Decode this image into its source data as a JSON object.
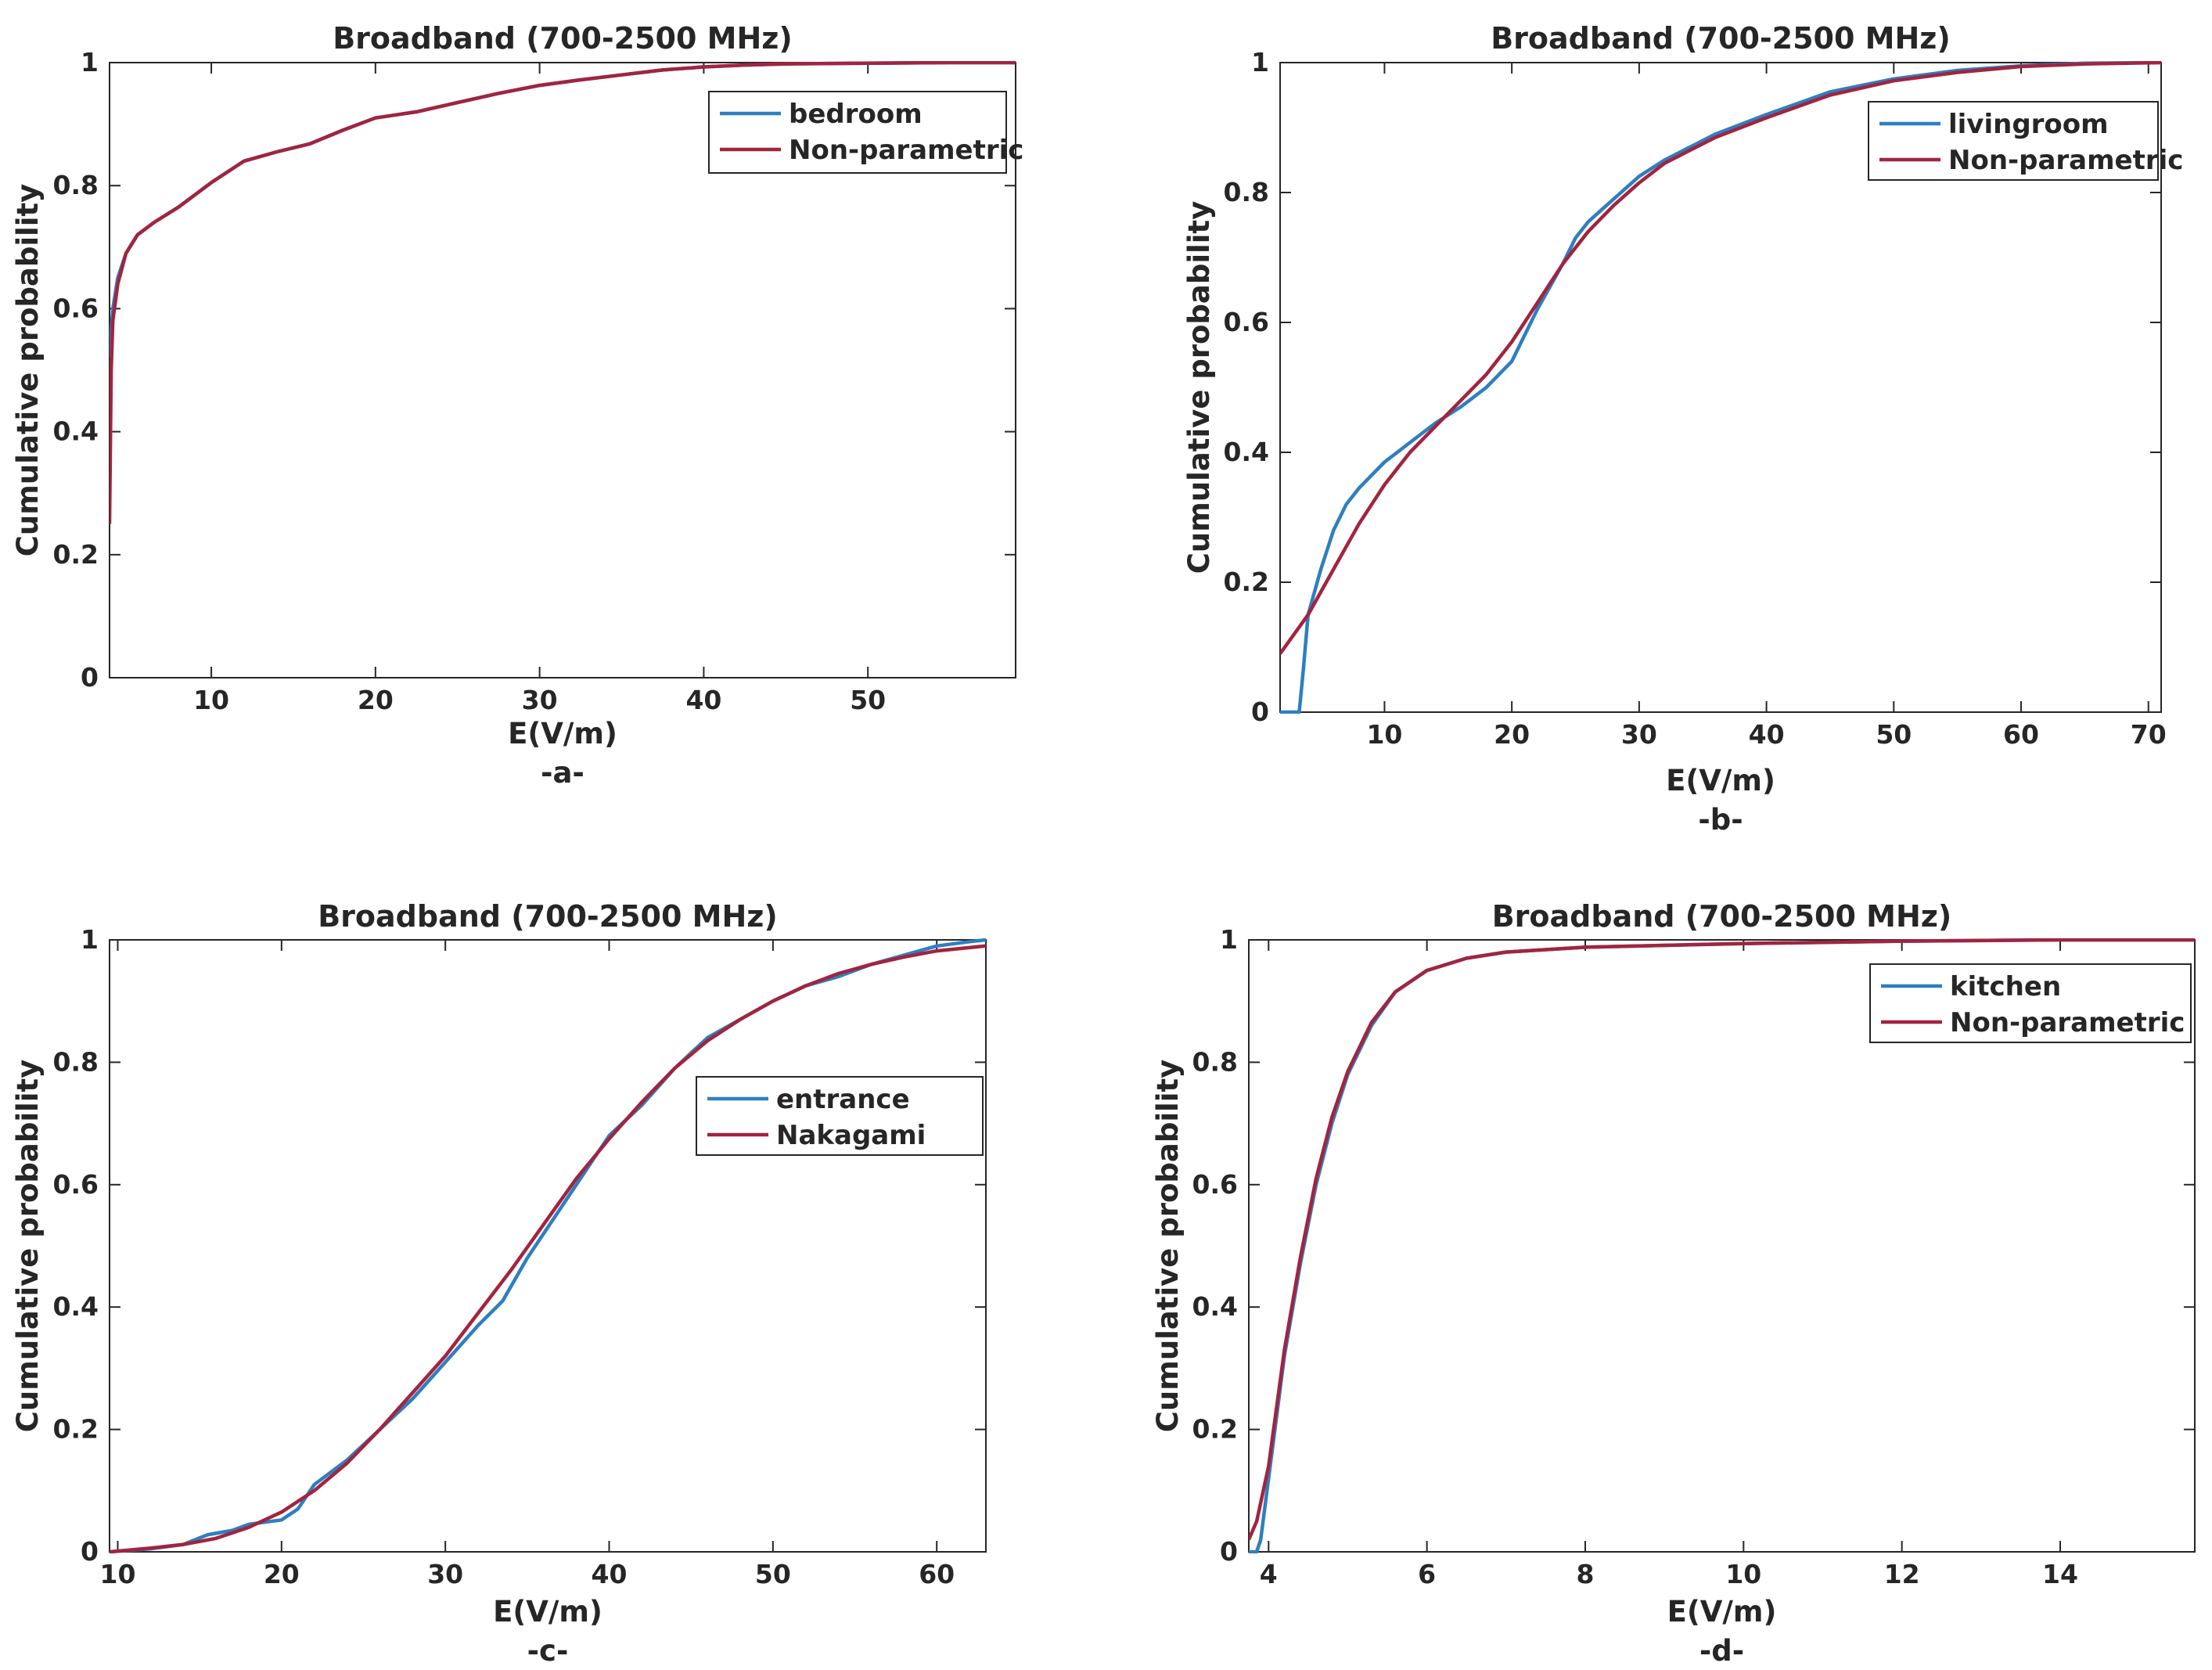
{
  "chart_data": [
    {
      "id": "a",
      "type": "line",
      "title": "Broadband (700-2500 MHz)",
      "xlabel": "E(V/m)",
      "ylabel": "Cumulative probability",
      "caption": "-a-",
      "xlim": [
        3.8,
        59
      ],
      "ylim": [
        0,
        1
      ],
      "xticks": [
        10,
        20,
        30,
        40,
        50
      ],
      "yticks": [
        0,
        0.2,
        0.4,
        0.6,
        0.8,
        1
      ],
      "ytick_labels": [
        "0",
        "0.2",
        "0.4",
        "0.6",
        "0.8",
        "1"
      ],
      "legend_position": "top-right",
      "series": [
        {
          "name": "bedroom",
          "color": "#2e7fc0",
          "x": [
            3.8,
            4.0,
            4.3,
            4.8,
            5.5,
            6.5,
            8,
            10,
            12,
            14,
            16,
            18,
            20,
            22.5,
            25,
            27.5,
            30,
            32.5,
            35,
            37.5,
            40,
            42.5,
            45,
            50,
            55,
            59
          ],
          "y": [
            0.52,
            0.6,
            0.65,
            0.69,
            0.72,
            0.74,
            0.765,
            0.805,
            0.84,
            0.855,
            0.868,
            0.89,
            0.91,
            0.92,
            0.935,
            0.95,
            0.963,
            0.972,
            0.98,
            0.988,
            0.993,
            0.996,
            0.998,
            0.999,
            1.0,
            1.0
          ]
        },
        {
          "name": "Non-parametric",
          "color": "#a2243f",
          "x": [
            3.8,
            3.9,
            4.0,
            4.3,
            4.8,
            5.5,
            6.5,
            8,
            10,
            12,
            14,
            16,
            18,
            20,
            22.5,
            25,
            27.5,
            30,
            32.5,
            35,
            37.5,
            40,
            42.5,
            45,
            50,
            55,
            59
          ],
          "y": [
            0.25,
            0.5,
            0.58,
            0.64,
            0.69,
            0.72,
            0.74,
            0.765,
            0.805,
            0.84,
            0.855,
            0.868,
            0.89,
            0.91,
            0.92,
            0.935,
            0.95,
            0.963,
            0.972,
            0.98,
            0.988,
            0.993,
            0.996,
            0.998,
            0.999,
            1.0,
            1.0
          ]
        }
      ]
    },
    {
      "id": "b",
      "type": "line",
      "title": "Broadband (700-2500 MHz)",
      "xlabel": "E(V/m)",
      "ylabel": "Cumulative probability",
      "caption": "-b-",
      "xlim": [
        1.8,
        71
      ],
      "ylim": [
        0,
        1
      ],
      "xticks": [
        10,
        20,
        30,
        40,
        50,
        60,
        70
      ],
      "yticks": [
        0,
        0.2,
        0.4,
        0.6,
        0.8,
        1
      ],
      "ytick_labels": [
        "0",
        "0.2",
        "0.4",
        "0.6",
        "0.8",
        "1"
      ],
      "legend_position": "top-right",
      "series": [
        {
          "name": "livingroom",
          "color": "#2e7fc0",
          "x": [
            1.8,
            3.3,
            3.6,
            4.0,
            5,
            6,
            7,
            8,
            10,
            12,
            14,
            16,
            18,
            20,
            22,
            24,
            25,
            26,
            28,
            30,
            32,
            34,
            36,
            38,
            40,
            45,
            50,
            55,
            60,
            65,
            71
          ],
          "y": [
            0,
            0,
            0.06,
            0.15,
            0.22,
            0.28,
            0.32,
            0.345,
            0.385,
            0.415,
            0.445,
            0.47,
            0.5,
            0.54,
            0.62,
            0.69,
            0.73,
            0.755,
            0.79,
            0.825,
            0.85,
            0.87,
            0.89,
            0.905,
            0.92,
            0.955,
            0.975,
            0.988,
            0.995,
            0.999,
            1.0
          ]
        },
        {
          "name": "Non-parametric",
          "color": "#a2243f",
          "x": [
            1.8,
            4,
            6,
            8,
            10,
            12,
            14,
            16,
            18,
            20,
            22,
            24,
            26,
            28,
            30,
            32,
            34,
            36,
            38,
            40,
            45,
            50,
            55,
            60,
            65,
            71
          ],
          "y": [
            0.09,
            0.15,
            0.22,
            0.29,
            0.35,
            0.4,
            0.44,
            0.48,
            0.52,
            0.57,
            0.63,
            0.69,
            0.74,
            0.78,
            0.815,
            0.845,
            0.865,
            0.885,
            0.9,
            0.915,
            0.95,
            0.972,
            0.985,
            0.994,
            0.998,
            1.0
          ]
        }
      ]
    },
    {
      "id": "c",
      "type": "line",
      "title": "Broadband (700-2500 MHz)",
      "xlabel": "E(V/m)",
      "ylabel": "Cumulative probability",
      "caption": "-c-",
      "xlim": [
        9.5,
        63
      ],
      "ylim": [
        0,
        1
      ],
      "xticks": [
        10,
        20,
        30,
        40,
        50,
        60
      ],
      "yticks": [
        0,
        0.2,
        0.4,
        0.6,
        0.8,
        1
      ],
      "ytick_labels": [
        "0",
        "0.2",
        "0.4",
        "0.6",
        "0.8",
        "1"
      ],
      "legend_position": "middle-right",
      "series": [
        {
          "name": "entrance",
          "color": "#2e7fc0",
          "x": [
            9.5,
            12,
            14,
            15.5,
            17,
            18,
            20,
            21,
            22,
            24,
            26,
            28,
            30,
            32,
            33.5,
            35,
            37,
            40,
            42,
            44,
            46,
            48,
            50,
            52,
            54,
            56,
            58,
            60,
            62,
            63
          ],
          "y": [
            0,
            0.005,
            0.012,
            0.028,
            0.035,
            0.045,
            0.052,
            0.07,
            0.11,
            0.15,
            0.2,
            0.25,
            0.31,
            0.37,
            0.41,
            0.48,
            0.56,
            0.68,
            0.73,
            0.79,
            0.84,
            0.87,
            0.9,
            0.925,
            0.94,
            0.96,
            0.975,
            0.99,
            0.997,
            1.0
          ]
        },
        {
          "name": "Nakagami",
          "color": "#a2243f",
          "x": [
            9.5,
            12,
            14,
            16,
            18,
            20,
            22,
            24,
            26,
            28,
            30,
            32,
            34,
            36,
            38,
            40,
            42,
            44,
            46,
            48,
            50,
            52,
            54,
            56,
            58,
            60,
            63
          ],
          "y": [
            0,
            0.006,
            0.012,
            0.022,
            0.04,
            0.065,
            0.1,
            0.145,
            0.2,
            0.26,
            0.32,
            0.39,
            0.46,
            0.535,
            0.61,
            0.675,
            0.735,
            0.79,
            0.835,
            0.87,
            0.9,
            0.925,
            0.945,
            0.96,
            0.972,
            0.982,
            0.99
          ]
        }
      ]
    },
    {
      "id": "d",
      "type": "line",
      "title": "Broadband (700-2500 MHz)",
      "xlabel": "E(V/m)",
      "ylabel": "Cumulative probability",
      "caption": "-d-",
      "xlim": [
        3.75,
        15.7
      ],
      "ylim": [
        0,
        1
      ],
      "xticks": [
        4,
        6,
        8,
        10,
        12,
        14
      ],
      "yticks": [
        0,
        0.2,
        0.4,
        0.6,
        0.8,
        1
      ],
      "ytick_labels": [
        "0",
        "0.2",
        "0.4",
        "0.6",
        "0.8",
        "1"
      ],
      "legend_position": "top-right",
      "series": [
        {
          "name": "kitchen",
          "color": "#2e7fc0",
          "x": [
            3.75,
            3.85,
            3.9,
            4.0,
            4.2,
            4.4,
            4.6,
            4.8,
            5.0,
            5.3,
            5.6,
            6.0,
            6.5,
            7,
            8,
            10,
            12,
            14,
            15.7
          ],
          "y": [
            0,
            0,
            0.02,
            0.12,
            0.32,
            0.47,
            0.6,
            0.7,
            0.78,
            0.86,
            0.915,
            0.95,
            0.97,
            0.98,
            0.988,
            0.994,
            0.998,
            1.0,
            1.0
          ]
        },
        {
          "name": "Non-parametric",
          "color": "#a2243f",
          "x": [
            3.75,
            3.85,
            4.0,
            4.2,
            4.4,
            4.6,
            4.8,
            5.0,
            5.3,
            5.6,
            6.0,
            6.5,
            7,
            8,
            10,
            12,
            14,
            15.7
          ],
          "y": [
            0.02,
            0.05,
            0.14,
            0.33,
            0.48,
            0.61,
            0.71,
            0.785,
            0.865,
            0.915,
            0.95,
            0.97,
            0.98,
            0.988,
            0.994,
            0.998,
            1.0,
            1.0
          ]
        }
      ]
    }
  ]
}
